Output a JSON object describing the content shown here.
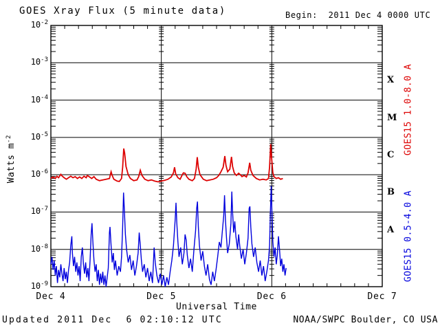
{
  "header": {
    "title": "GOES Xray Flux (5 minute data)",
    "begin_label": "Begin:  2011 Dec 4 0000 UTC"
  },
  "footer": {
    "updated": "Updated 2011 Dec  6 02:10:12 UTC",
    "source": "NOAA/SWPC Boulder, CO USA"
  },
  "colors": {
    "long_channel": "#dd0000",
    "short_channel": "#0000dd",
    "axis": "#000000",
    "background": "#ffffff"
  },
  "chart_data": {
    "type": "line",
    "title": "GOES Xray Flux (5 minute data)",
    "xlabel": "Universal Time",
    "ylabel_base": "Watts m",
    "ylabel_exp": "-2",
    "x_ticks": [
      "Dec 4",
      "Dec 5",
      "Dec 6",
      "Dec 7"
    ],
    "x_range_days": [
      0,
      3
    ],
    "x_minor_tick_hours": 3,
    "y_scale": "log10",
    "y_log_exponents": [
      -2,
      -3,
      -4,
      -5,
      -6,
      -7,
      -8,
      -9
    ],
    "grid": {
      "horizontal": "every decade",
      "vertical": "every day",
      "legend_position": "right-rotated"
    },
    "flare_classes": [
      {
        "label": "X",
        "center_exp": -3.5
      },
      {
        "label": "M",
        "center_exp": -4.5
      },
      {
        "label": "C",
        "center_exp": -5.5
      },
      {
        "label": "B",
        "center_exp": -6.5
      },
      {
        "label": "A",
        "center_exp": -7.5
      }
    ],
    "series": [
      {
        "name": "GOES15 1.0-8.0 A",
        "color": "#dd0000",
        "points_format": "[days_since_dec4_0000UTC, log10_watts_m2]",
        "points": [
          [
            0.0,
            -6.1
          ],
          [
            0.02,
            -6.06
          ],
          [
            0.04,
            -6.1
          ],
          [
            0.055,
            -6.04
          ],
          [
            0.07,
            -6.08
          ],
          [
            0.09,
            -5.99
          ],
          [
            0.1,
            -6.03
          ],
          [
            0.12,
            -6.08
          ],
          [
            0.14,
            -6.12
          ],
          [
            0.16,
            -6.08
          ],
          [
            0.18,
            -6.04
          ],
          [
            0.2,
            -6.08
          ],
          [
            0.22,
            -6.05
          ],
          [
            0.24,
            -6.1
          ],
          [
            0.26,
            -6.06
          ],
          [
            0.28,
            -6.1
          ],
          [
            0.3,
            -6.04
          ],
          [
            0.32,
            -6.08
          ],
          [
            0.33,
            -6.02
          ],
          [
            0.35,
            -6.06
          ],
          [
            0.37,
            -6.1
          ],
          [
            0.39,
            -6.05
          ],
          [
            0.41,
            -6.12
          ],
          [
            0.44,
            -6.16
          ],
          [
            0.47,
            -6.14
          ],
          [
            0.5,
            -6.12
          ],
          [
            0.53,
            -6.1
          ],
          [
            0.545,
            -5.92
          ],
          [
            0.555,
            -6.02
          ],
          [
            0.57,
            -6.12
          ],
          [
            0.6,
            -6.17
          ],
          [
            0.62,
            -6.18
          ],
          [
            0.64,
            -6.1
          ],
          [
            0.65,
            -5.8
          ],
          [
            0.66,
            -5.3
          ],
          [
            0.668,
            -5.42
          ],
          [
            0.68,
            -5.78
          ],
          [
            0.7,
            -6.0
          ],
          [
            0.72,
            -6.1
          ],
          [
            0.75,
            -6.16
          ],
          [
            0.78,
            -6.14
          ],
          [
            0.795,
            -6.05
          ],
          [
            0.81,
            -5.88
          ],
          [
            0.825,
            -6.02
          ],
          [
            0.85,
            -6.12
          ],
          [
            0.88,
            -6.16
          ],
          [
            0.91,
            -6.14
          ],
          [
            0.94,
            -6.17
          ],
          [
            0.97,
            -6.19
          ],
          [
            1.0,
            -6.17
          ],
          [
            1.03,
            -6.15
          ],
          [
            1.06,
            -6.12
          ],
          [
            1.09,
            -6.06
          ],
          [
            1.11,
            -5.95
          ],
          [
            1.12,
            -5.8
          ],
          [
            1.13,
            -5.98
          ],
          [
            1.15,
            -6.08
          ],
          [
            1.17,
            -6.12
          ],
          [
            1.19,
            -6.0
          ],
          [
            1.2,
            -5.95
          ],
          [
            1.215,
            -5.96
          ],
          [
            1.23,
            -6.05
          ],
          [
            1.25,
            -6.12
          ],
          [
            1.28,
            -6.16
          ],
          [
            1.3,
            -6.1
          ],
          [
            1.315,
            -5.85
          ],
          [
            1.325,
            -5.53
          ],
          [
            1.335,
            -5.8
          ],
          [
            1.35,
            -6.0
          ],
          [
            1.38,
            -6.12
          ],
          [
            1.41,
            -6.16
          ],
          [
            1.44,
            -6.14
          ],
          [
            1.47,
            -6.12
          ],
          [
            1.5,
            -6.08
          ],
          [
            1.52,
            -6.02
          ],
          [
            1.54,
            -5.92
          ],
          [
            1.56,
            -5.8
          ],
          [
            1.575,
            -5.5
          ],
          [
            1.585,
            -5.75
          ],
          [
            1.6,
            -5.92
          ],
          [
            1.62,
            -5.85
          ],
          [
            1.635,
            -5.52
          ],
          [
            1.645,
            -5.78
          ],
          [
            1.66,
            -5.95
          ],
          [
            1.68,
            -6.02
          ],
          [
            1.7,
            -5.96
          ],
          [
            1.715,
            -6.0
          ],
          [
            1.73,
            -6.05
          ],
          [
            1.75,
            -6.02
          ],
          [
            1.77,
            -6.06
          ],
          [
            1.785,
            -5.95
          ],
          [
            1.8,
            -5.68
          ],
          [
            1.81,
            -5.88
          ],
          [
            1.83,
            -6.02
          ],
          [
            1.86,
            -6.1
          ],
          [
            1.89,
            -6.14
          ],
          [
            1.92,
            -6.12
          ],
          [
            1.95,
            -6.14
          ],
          [
            1.97,
            -6.1
          ],
          [
            1.98,
            -5.8
          ],
          [
            1.99,
            -5.18
          ],
          [
            2.0,
            -5.6
          ],
          [
            2.01,
            -5.95
          ],
          [
            2.02,
            -6.05
          ],
          [
            2.04,
            -6.1
          ],
          [
            2.06,
            -6.08
          ],
          [
            2.08,
            -6.12
          ],
          [
            2.1,
            -6.1
          ]
        ]
      },
      {
        "name": "GOES15 0.5-4.0 A",
        "color": "#0000dd",
        "points_format": "[days_since_dec4_0000UTC, log10_watts_m2]",
        "points": [
          [
            0.0,
            -8.4
          ],
          [
            0.01,
            -8.2
          ],
          [
            0.02,
            -8.55
          ],
          [
            0.03,
            -8.3
          ],
          [
            0.04,
            -8.7
          ],
          [
            0.05,
            -8.45
          ],
          [
            0.06,
            -8.9
          ],
          [
            0.07,
            -8.55
          ],
          [
            0.08,
            -8.75
          ],
          [
            0.09,
            -8.4
          ],
          [
            0.1,
            -8.65
          ],
          [
            0.11,
            -8.85
          ],
          [
            0.12,
            -8.5
          ],
          [
            0.13,
            -8.8
          ],
          [
            0.14,
            -8.6
          ],
          [
            0.15,
            -8.9
          ],
          [
            0.16,
            -8.55
          ],
          [
            0.17,
            -8.35
          ],
          [
            0.18,
            -7.9
          ],
          [
            0.19,
            -7.65
          ],
          [
            0.195,
            -8.1
          ],
          [
            0.205,
            -8.45
          ],
          [
            0.215,
            -8.2
          ],
          [
            0.225,
            -8.6
          ],
          [
            0.235,
            -8.35
          ],
          [
            0.245,
            -8.7
          ],
          [
            0.255,
            -8.45
          ],
          [
            0.265,
            -8.85
          ],
          [
            0.275,
            -8.2
          ],
          [
            0.285,
            -7.95
          ],
          [
            0.295,
            -8.4
          ],
          [
            0.305,
            -8.65
          ],
          [
            0.315,
            -8.35
          ],
          [
            0.325,
            -8.75
          ],
          [
            0.335,
            -8.5
          ],
          [
            0.345,
            -8.85
          ],
          [
            0.355,
            -8.3
          ],
          [
            0.365,
            -7.6
          ],
          [
            0.372,
            -7.3
          ],
          [
            0.38,
            -7.8
          ],
          [
            0.39,
            -8.3
          ],
          [
            0.4,
            -8.6
          ],
          [
            0.41,
            -8.4
          ],
          [
            0.42,
            -8.85
          ],
          [
            0.43,
            -8.55
          ],
          [
            0.44,
            -8.95
          ],
          [
            0.45,
            -8.65
          ],
          [
            0.46,
            -8.9
          ],
          [
            0.47,
            -8.6
          ],
          [
            0.48,
            -8.95
          ],
          [
            0.49,
            -8.7
          ],
          [
            0.5,
            -9.0
          ],
          [
            0.51,
            -8.75
          ],
          [
            0.52,
            -8.5
          ],
          [
            0.53,
            -7.55
          ],
          [
            0.535,
            -7.4
          ],
          [
            0.545,
            -7.9
          ],
          [
            0.555,
            -8.35
          ],
          [
            0.565,
            -8.1
          ],
          [
            0.575,
            -8.55
          ],
          [
            0.585,
            -8.3
          ],
          [
            0.6,
            -8.7
          ],
          [
            0.615,
            -8.45
          ],
          [
            0.63,
            -8.6
          ],
          [
            0.64,
            -8.2
          ],
          [
            0.65,
            -7.4
          ],
          [
            0.658,
            -6.48
          ],
          [
            0.665,
            -6.9
          ],
          [
            0.675,
            -7.6
          ],
          [
            0.685,
            -8.0
          ],
          [
            0.7,
            -8.35
          ],
          [
            0.715,
            -8.15
          ],
          [
            0.73,
            -8.55
          ],
          [
            0.745,
            -8.3
          ],
          [
            0.76,
            -8.7
          ],
          [
            0.775,
            -8.45
          ],
          [
            0.79,
            -8.1
          ],
          [
            0.8,
            -7.55
          ],
          [
            0.81,
            -7.9
          ],
          [
            0.82,
            -8.3
          ],
          [
            0.83,
            -8.6
          ],
          [
            0.845,
            -8.4
          ],
          [
            0.86,
            -8.75
          ],
          [
            0.875,
            -8.5
          ],
          [
            0.89,
            -8.85
          ],
          [
            0.905,
            -8.6
          ],
          [
            0.92,
            -8.9
          ],
          [
            0.935,
            -7.95
          ],
          [
            0.945,
            -8.35
          ],
          [
            0.96,
            -8.7
          ],
          [
            0.975,
            -8.9
          ],
          [
            0.99,
            -8.65
          ],
          [
            1.005,
            -8.95
          ],
          [
            1.02,
            -8.7
          ],
          [
            1.035,
            -9.0
          ],
          [
            1.05,
            -8.75
          ],
          [
            1.065,
            -8.95
          ],
          [
            1.08,
            -8.6
          ],
          [
            1.095,
            -8.3
          ],
          [
            1.11,
            -7.9
          ],
          [
            1.125,
            -7.2
          ],
          [
            1.133,
            -6.75
          ],
          [
            1.14,
            -7.3
          ],
          [
            1.15,
            -7.8
          ],
          [
            1.16,
            -8.2
          ],
          [
            1.175,
            -7.95
          ],
          [
            1.19,
            -8.4
          ],
          [
            1.205,
            -8.1
          ],
          [
            1.215,
            -7.6
          ],
          [
            1.225,
            -7.75
          ],
          [
            1.235,
            -8.15
          ],
          [
            1.25,
            -8.5
          ],
          [
            1.265,
            -8.25
          ],
          [
            1.28,
            -8.6
          ],
          [
            1.295,
            -8.0
          ],
          [
            1.31,
            -7.5
          ],
          [
            1.32,
            -6.9
          ],
          [
            1.327,
            -6.72
          ],
          [
            1.335,
            -7.4
          ],
          [
            1.345,
            -7.9
          ],
          [
            1.36,
            -8.3
          ],
          [
            1.375,
            -8.05
          ],
          [
            1.39,
            -8.45
          ],
          [
            1.405,
            -8.7
          ],
          [
            1.42,
            -8.4
          ],
          [
            1.435,
            -8.8
          ],
          [
            1.45,
            -8.95
          ],
          [
            1.465,
            -8.6
          ],
          [
            1.48,
            -8.85
          ],
          [
            1.495,
            -8.55
          ],
          [
            1.51,
            -8.2
          ],
          [
            1.525,
            -7.8
          ],
          [
            1.54,
            -7.95
          ],
          [
            1.55,
            -7.6
          ],
          [
            1.565,
            -7.1
          ],
          [
            1.572,
            -6.55
          ],
          [
            1.58,
            -7.2
          ],
          [
            1.59,
            -7.7
          ],
          [
            1.6,
            -8.1
          ],
          [
            1.615,
            -7.85
          ],
          [
            1.63,
            -7.3
          ],
          [
            1.638,
            -6.45
          ],
          [
            1.645,
            -7.0
          ],
          [
            1.655,
            -7.55
          ],
          [
            1.665,
            -7.25
          ],
          [
            1.675,
            -7.65
          ],
          [
            1.69,
            -8.0
          ],
          [
            1.7,
            -7.6
          ],
          [
            1.71,
            -7.9
          ],
          [
            1.725,
            -8.25
          ],
          [
            1.74,
            -8.0
          ],
          [
            1.755,
            -8.4
          ],
          [
            1.77,
            -8.1
          ],
          [
            1.785,
            -7.7
          ],
          [
            1.795,
            -6.9
          ],
          [
            1.802,
            -6.85
          ],
          [
            1.81,
            -7.4
          ],
          [
            1.82,
            -7.85
          ],
          [
            1.835,
            -8.2
          ],
          [
            1.85,
            -7.95
          ],
          [
            1.865,
            -8.35
          ],
          [
            1.88,
            -8.6
          ],
          [
            1.895,
            -8.3
          ],
          [
            1.91,
            -8.7
          ],
          [
            1.925,
            -8.45
          ],
          [
            1.94,
            -8.85
          ],
          [
            1.955,
            -8.6
          ],
          [
            1.97,
            -8.3
          ],
          [
            1.98,
            -7.9
          ],
          [
            1.988,
            -6.95
          ],
          [
            1.995,
            -6.3
          ],
          [
            2.002,
            -7.1
          ],
          [
            2.01,
            -7.8
          ],
          [
            2.02,
            -8.2
          ],
          [
            2.03,
            -7.95
          ],
          [
            2.04,
            -8.4
          ],
          [
            2.05,
            -8.15
          ],
          [
            2.06,
            -7.65
          ],
          [
            2.07,
            -8.0
          ],
          [
            2.08,
            -8.45
          ],
          [
            2.09,
            -8.25
          ],
          [
            2.1,
            -8.6
          ],
          [
            2.11,
            -8.4
          ],
          [
            2.12,
            -8.7
          ],
          [
            2.13,
            -8.5
          ]
        ]
      }
    ]
  }
}
